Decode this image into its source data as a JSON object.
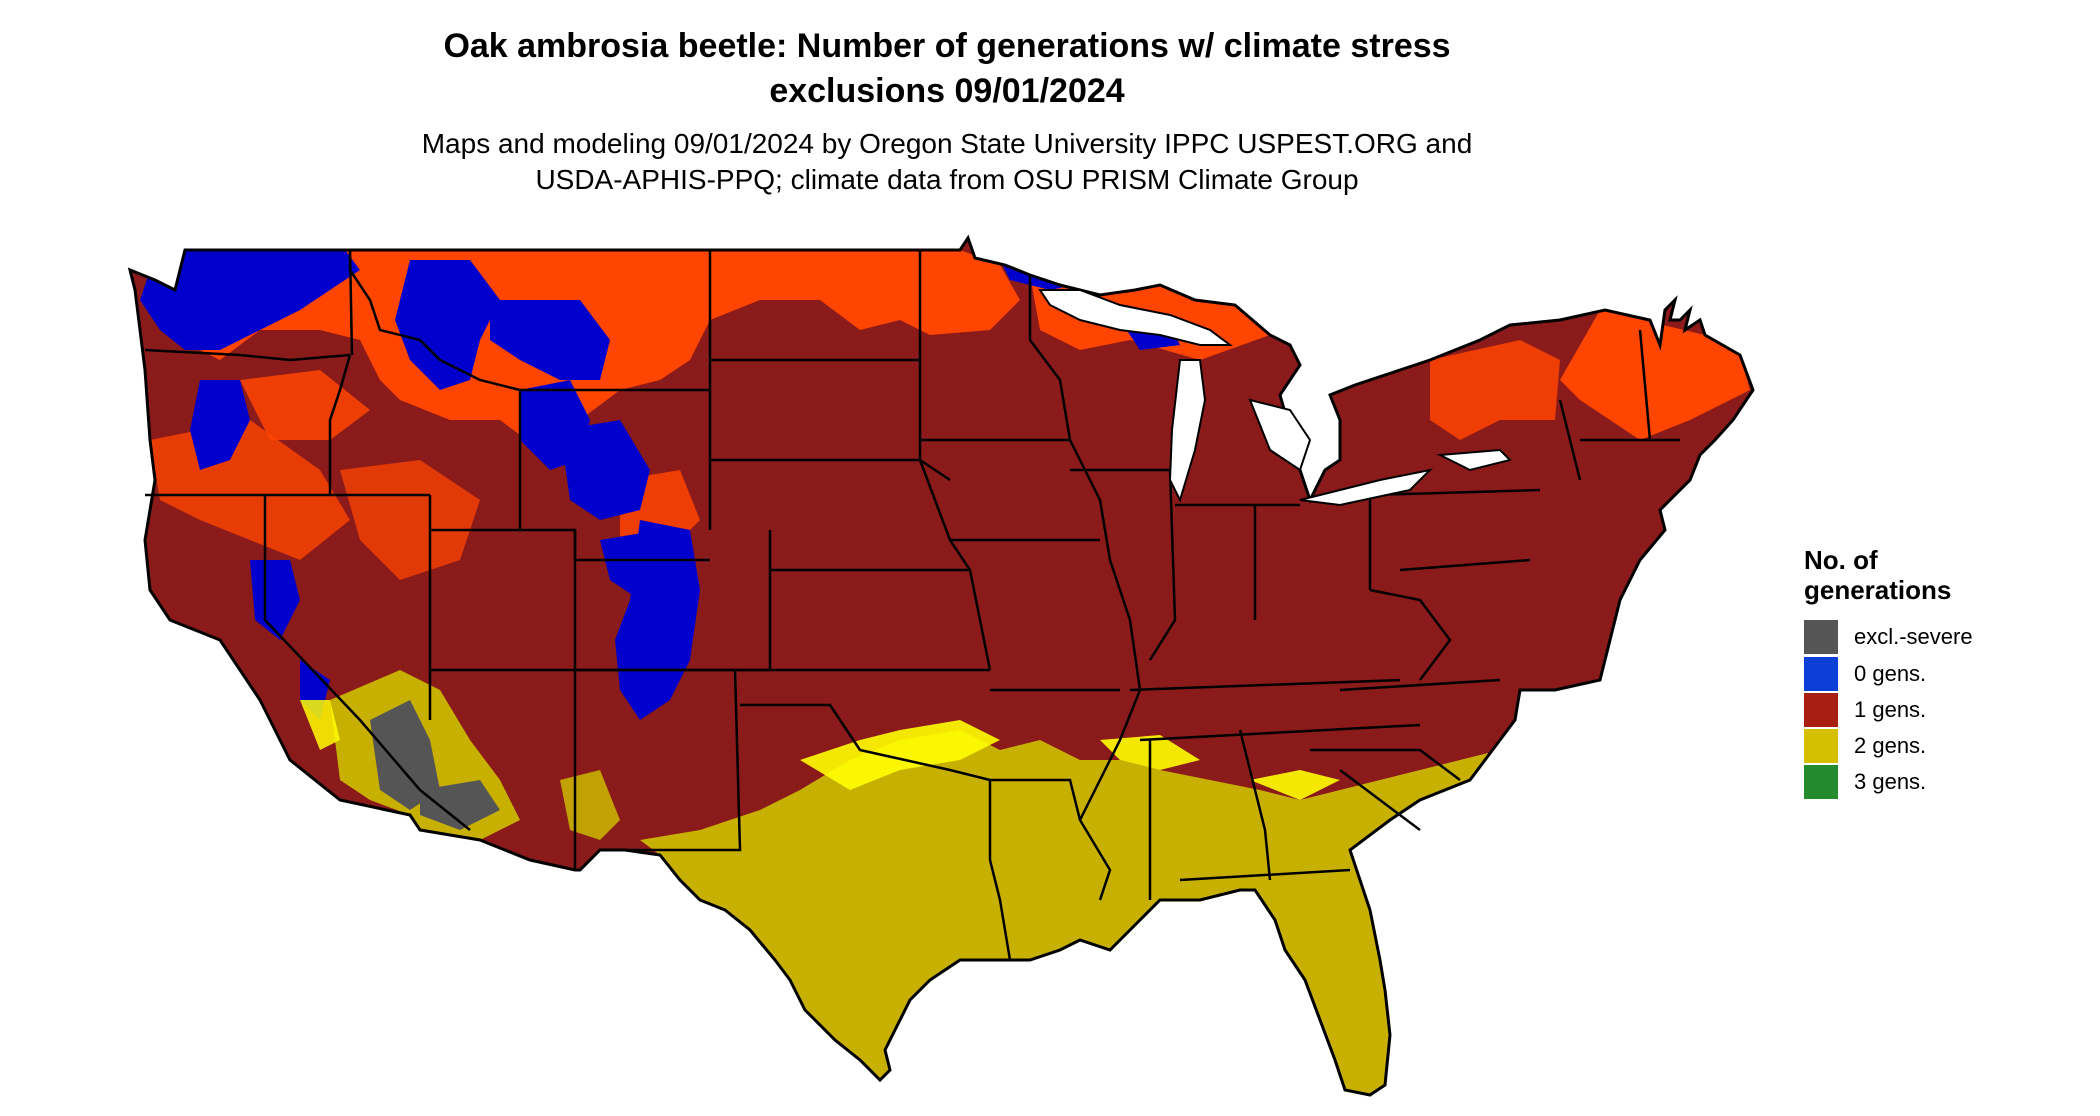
{
  "header": {
    "title_line1": "Oak ambrosia beetle: Number of generations w/ climate stress",
    "title_line2": "exclusions 09/01/2024",
    "subtitle_line1": "Maps and modeling 09/01/2024 by Oregon State University IPPC USPEST.ORG and",
    "subtitle_line2": "USDA-APHIS-PPQ; climate data from OSU PRISM Climate Group"
  },
  "legend": {
    "title_line1": "No. of",
    "title_line2": "generations",
    "items": [
      {
        "label": "excl.-severe",
        "color": "#555555"
      },
      {
        "label": "0 gens.",
        "color": "#0b3fd6"
      },
      {
        "label": "1 gens.",
        "color": "#a81e12"
      },
      {
        "label": "2 gens.",
        "color": "#d4c000"
      },
      {
        "label": "3 gens.",
        "color": "#238b2d"
      }
    ]
  },
  "map_colors": {
    "dark_red": "#8b1a1a",
    "orange_red": "#ff4500",
    "blue": "#0000cc",
    "yellow": "#c8b000",
    "bright_yellow": "#ffff00",
    "gray": "#555555",
    "border": "#000000"
  }
}
